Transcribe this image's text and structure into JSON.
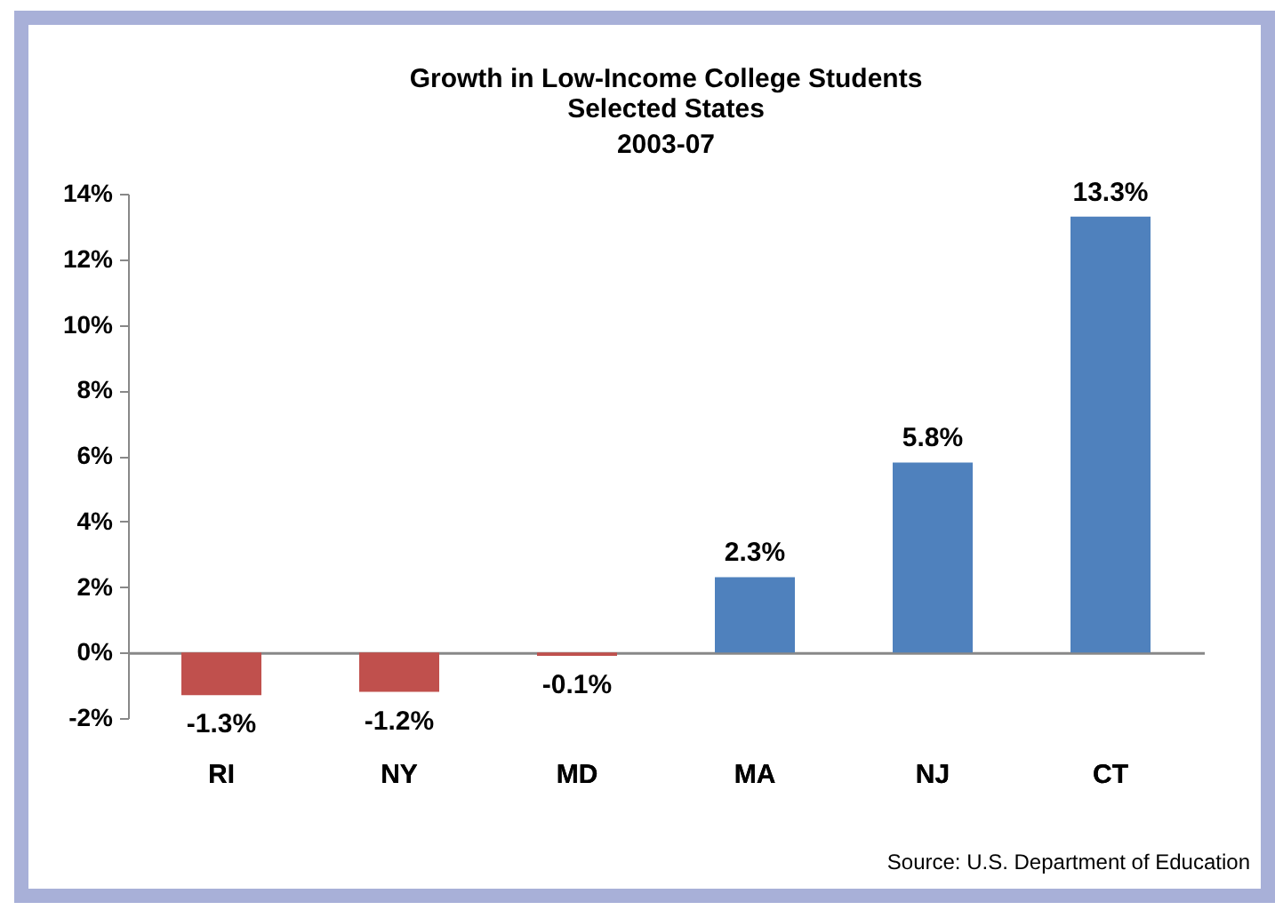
{
  "chart_data": {
    "type": "bar",
    "title": "Growth in Low-Income College Students",
    "subtitle": [
      "Selected States",
      "2003-07"
    ],
    "categories": [
      "RI",
      "NY",
      "MD",
      "MA",
      "NJ",
      "CT"
    ],
    "values": [
      -1.3,
      -1.2,
      -0.1,
      2.3,
      5.8,
      13.3
    ],
    "value_labels": [
      "-1.3%",
      "-1.2%",
      "-0.1%",
      "2.3%",
      "5.8%",
      "13.3%"
    ],
    "colors": [
      "#c0504d",
      "#c0504d",
      "#c0504d",
      "#4f81bd",
      "#4f81bd",
      "#4f81bd"
    ],
    "ylim": [
      -2,
      14
    ],
    "yticks": [
      {
        "value": -2,
        "label": "-2%"
      },
      {
        "value": 0,
        "label": "0%"
      },
      {
        "value": 2,
        "label": "2%"
      },
      {
        "value": 4,
        "label": "4%"
      },
      {
        "value": 6,
        "label": "6%"
      },
      {
        "value": 8,
        "label": "8%"
      },
      {
        "value": 10,
        "label": "10%"
      },
      {
        "value": 12,
        "label": "12%"
      },
      {
        "value": 14,
        "label": "14%"
      }
    ],
    "annotations": [
      "Source:  U.S. Department of Education"
    ]
  }
}
